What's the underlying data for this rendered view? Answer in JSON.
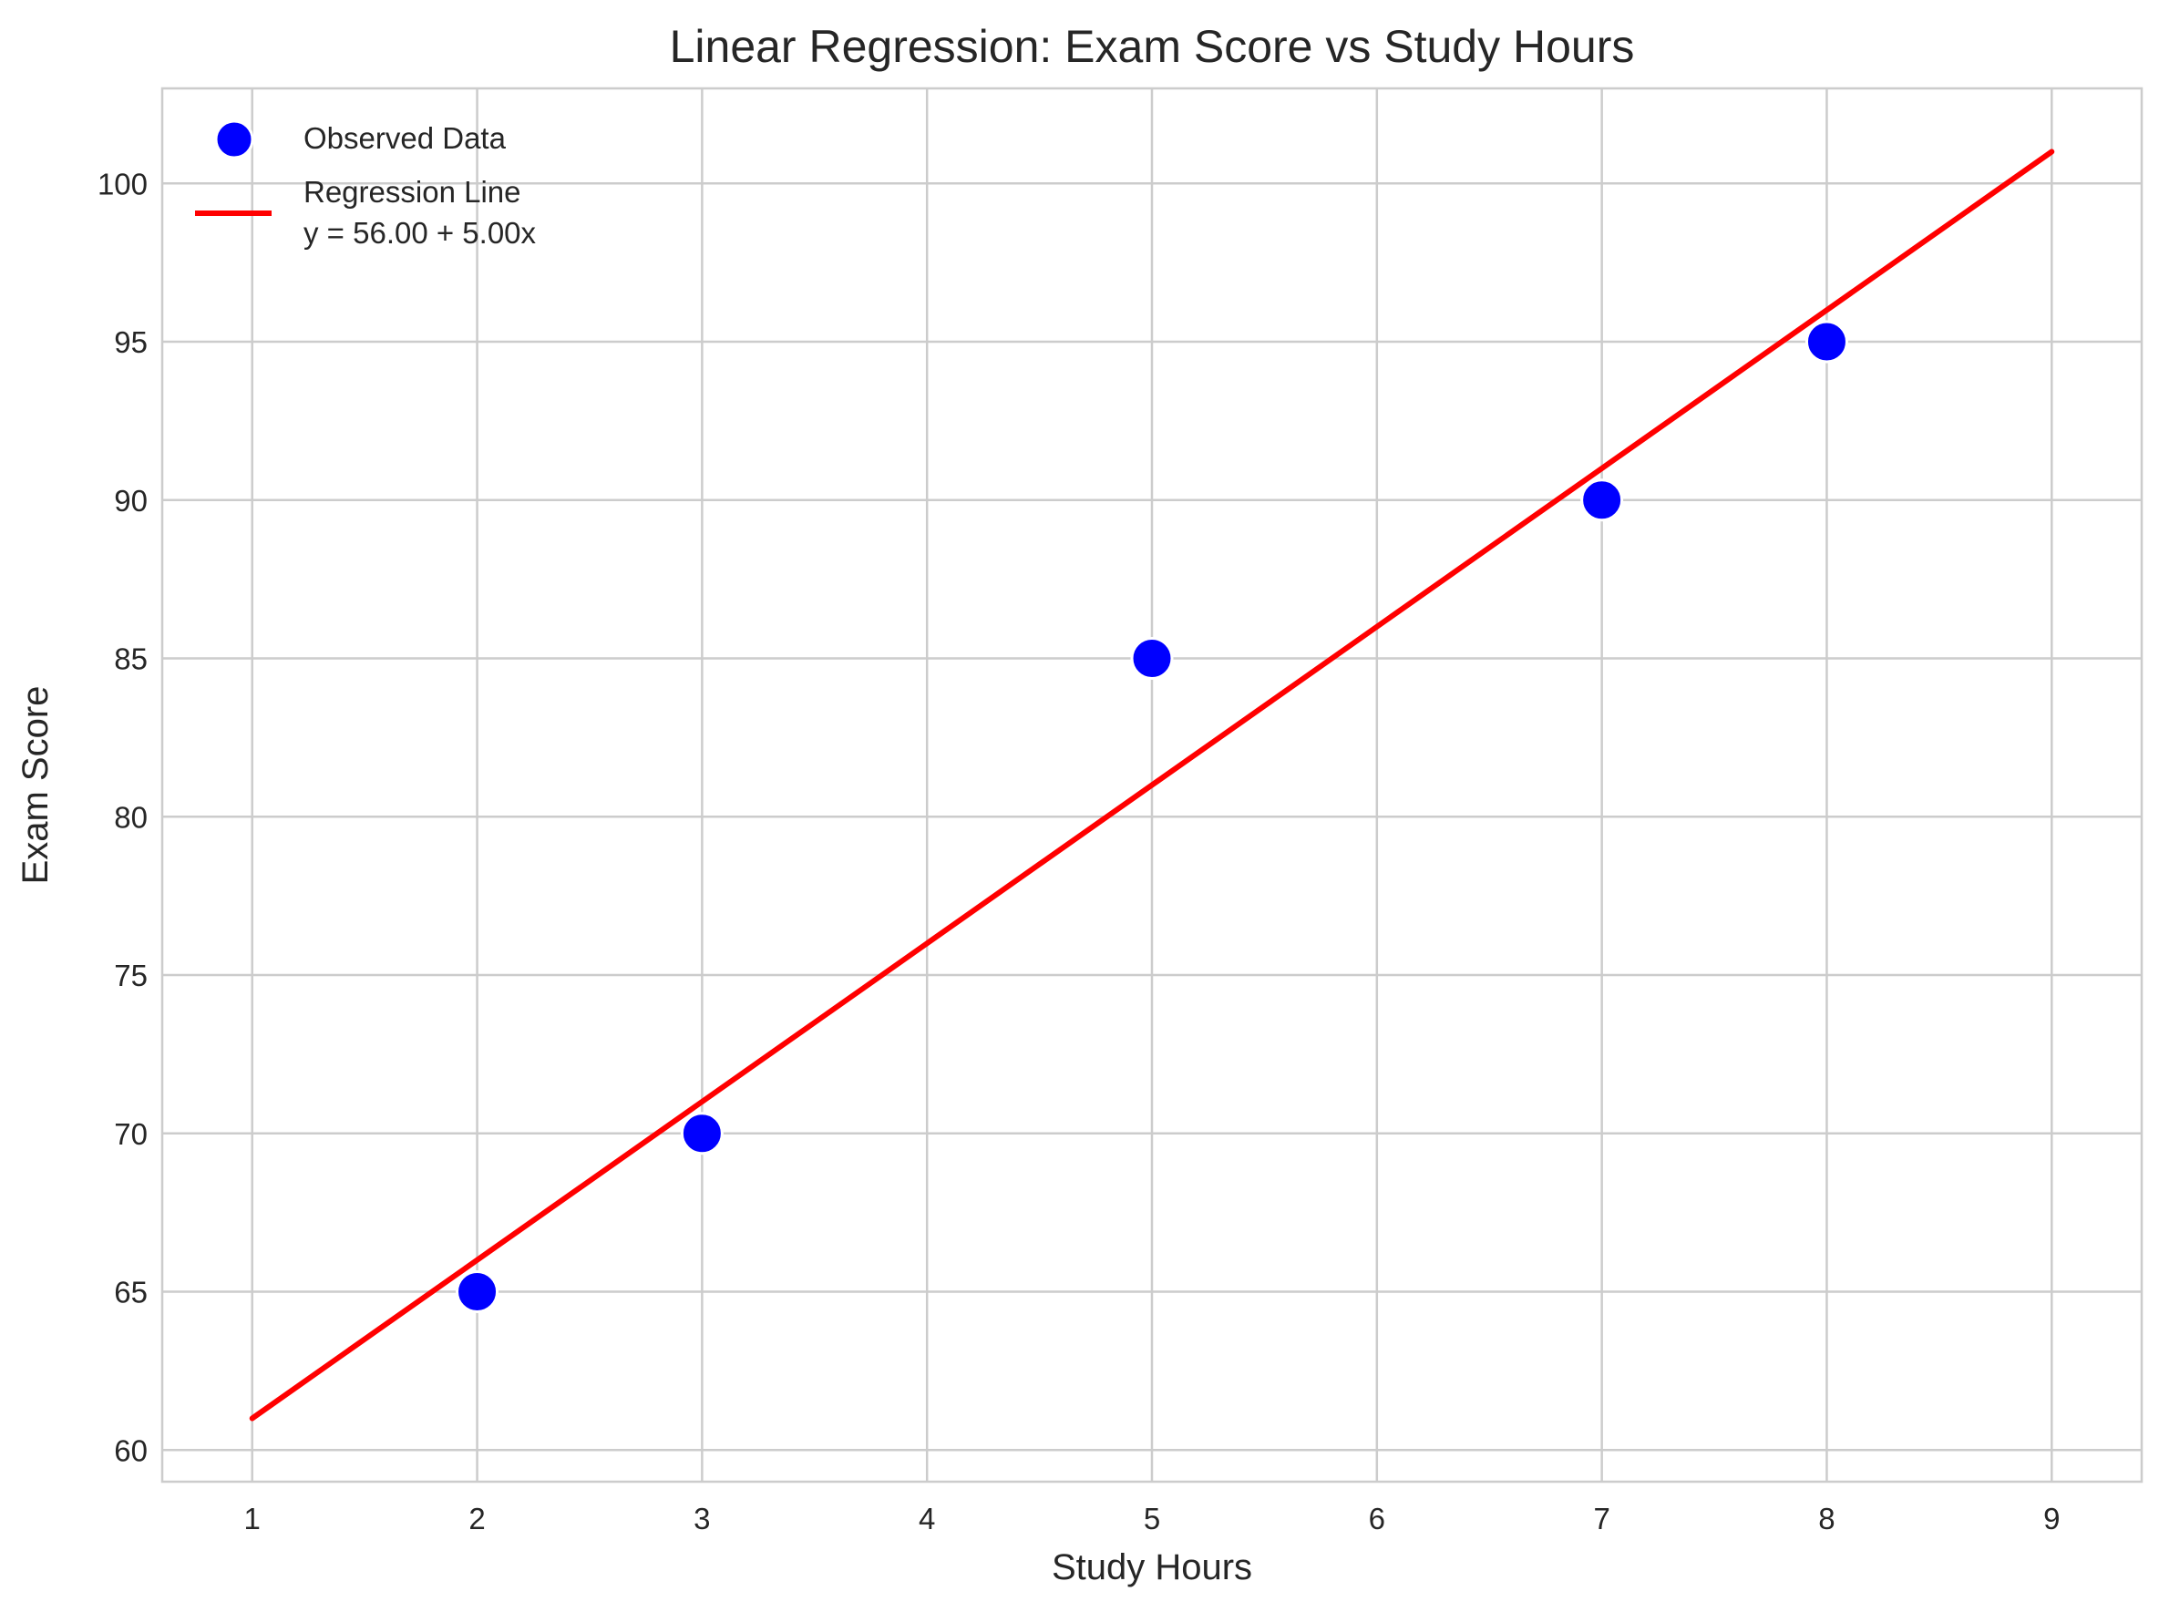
{
  "chart_data": {
    "type": "scatter",
    "title": "Linear Regression: Exam Score vs Study Hours",
    "xlabel": "Study Hours",
    "ylabel": "Exam Score",
    "xlim": [
      0.6,
      9.4
    ],
    "ylim": [
      59,
      103
    ],
    "xticks": [
      1,
      2,
      3,
      4,
      5,
      6,
      7,
      8,
      9
    ],
    "yticks": [
      60,
      65,
      70,
      75,
      80,
      85,
      90,
      95,
      100
    ],
    "grid": true,
    "legend_position": "top-left",
    "series": [
      {
        "name": "Observed Data",
        "kind": "scatter",
        "color": "#0000ff",
        "x": [
          2,
          3,
          5,
          7,
          8
        ],
        "y": [
          65,
          70,
          85,
          90,
          95
        ]
      },
      {
        "name": "Regression Line",
        "equation": "y = 56.00 + 5.00x",
        "kind": "line",
        "color": "#ff0000",
        "x": [
          1,
          9
        ],
        "y": [
          61,
          101
        ]
      }
    ]
  }
}
